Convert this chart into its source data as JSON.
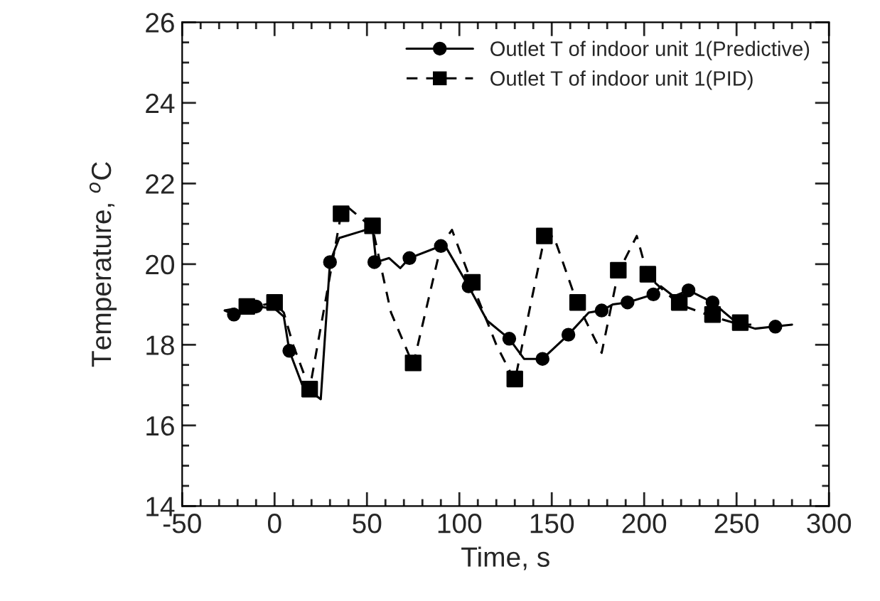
{
  "chart_data": {
    "type": "line",
    "xlabel": "Time, s",
    "ylabel": "Temperature, $^{o}$C",
    "xlim": [
      -50,
      300
    ],
    "ylim": [
      14,
      26
    ],
    "xticks": [
      -50,
      0,
      50,
      100,
      150,
      200,
      250,
      300
    ],
    "yticks": [
      14,
      16,
      18,
      20,
      22,
      24,
      26
    ],
    "grid": false,
    "legend": "top right",
    "series": [
      {
        "color": "#000000",
        "line_style": "solid",
        "x": [
          -27,
          -22,
          -10,
          0,
          5,
          8,
          15,
          25,
          30,
          35,
          53,
          55,
          62,
          68,
          73,
          90,
          93,
          105,
          115,
          127,
          135,
          145,
          159,
          170,
          177,
          183,
          191,
          205,
          209,
          216,
          224,
          237,
          250,
          260,
          270,
          280
        ],
        "values": [
          18.85,
          18.75,
          18.95,
          18.9,
          18.7,
          17.85,
          17.0,
          16.65,
          20.05,
          20.65,
          20.9,
          20.05,
          20.15,
          19.9,
          20.15,
          20.45,
          20.4,
          19.45,
          18.6,
          18.15,
          17.65,
          17.65,
          18.25,
          18.8,
          18.85,
          19.0,
          19.05,
          19.25,
          19.45,
          19.2,
          19.35,
          19.05,
          18.55,
          18.4,
          18.45,
          18.5
        ]
      },
      {
        "color": "#000000",
        "line_style": "dashed",
        "x": [
          -27,
          -15,
          -10,
          0,
          5,
          10,
          19,
          36,
          40,
          53,
          63,
          75,
          90,
          96,
          107,
          120,
          130,
          146,
          151,
          164,
          177,
          186,
          196,
          202,
          219,
          237,
          252,
          258
        ],
        "values": [
          18.85,
          18.95,
          18.95,
          19.05,
          18.8,
          18.0,
          16.9,
          21.25,
          21.4,
          20.9,
          18.8,
          17.5,
          20.45,
          20.85,
          19.5,
          18.0,
          17.1,
          20.65,
          20.7,
          19.0,
          17.8,
          19.8,
          20.7,
          19.7,
          19.0,
          18.7,
          18.5,
          18.5
        ]
      },
      {
        "type": "scatter",
        "name": "Outlet T of indoor unit 1(Predictive)",
        "color": "#000000",
        "line_style": "solid",
        "marker": "circle",
        "x": [
          -22,
          -10,
          8,
          30,
          54,
          73,
          90,
          105,
          127,
          145,
          159,
          177,
          191,
          205,
          224,
          237,
          271
        ],
        "values": [
          18.75,
          18.95,
          17.85,
          20.05,
          20.05,
          20.15,
          20.45,
          19.45,
          18.15,
          17.65,
          18.25,
          18.85,
          19.05,
          19.25,
          19.35,
          19.05,
          18.45
        ]
      },
      {
        "type": "scatter",
        "name": "Outlet T of indoor unit 1(PID)",
        "color": "#000000",
        "line_style": "dashed",
        "marker": "square",
        "x": [
          -15,
          0,
          19,
          36,
          53,
          75,
          107,
          130,
          146,
          164,
          186,
          202,
          219,
          237,
          252
        ],
        "values": [
          18.95,
          19.05,
          16.9,
          21.25,
          20.95,
          17.55,
          19.55,
          17.15,
          20.7,
          19.05,
          19.85,
          19.75,
          19.05,
          18.75,
          18.55
        ]
      }
    ]
  }
}
